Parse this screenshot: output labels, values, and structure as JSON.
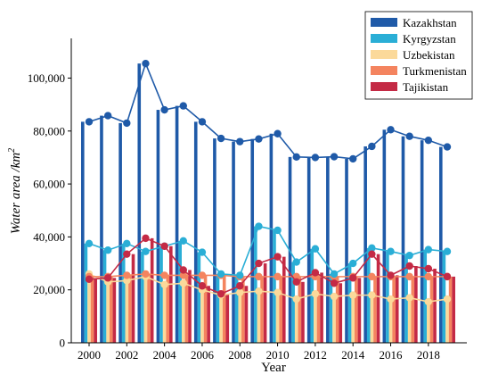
{
  "chart_data": {
    "type": "bar",
    "xlabel": "Year",
    "ylabel": "Water area /km",
    "ylabel_sup": "2",
    "ylim": [
      0,
      115000
    ],
    "yticks": [
      0,
      20000,
      40000,
      60000,
      80000,
      100000
    ],
    "ytick_labels": [
      "0",
      "20,000",
      "40,000",
      "60,000",
      "80,000",
      "100,000"
    ],
    "xticks": [
      2000,
      2002,
      2004,
      2006,
      2008,
      2010,
      2012,
      2014,
      2016,
      2018
    ],
    "xtick_labels": [
      "2000",
      "2002",
      "2004",
      "2006",
      "2008",
      "2010",
      "2012",
      "2014",
      "2016",
      "2018"
    ],
    "x": [
      2000,
      2001,
      2002,
      2003,
      2004,
      2005,
      2006,
      2007,
      2008,
      2009,
      2010,
      2011,
      2012,
      2013,
      2014,
      2015,
      2016,
      2017,
      2018,
      2019
    ],
    "legend_position": "top-right",
    "grid": false,
    "series": [
      {
        "name": "Kazakhstan",
        "color": "#1f5aa8",
        "values": [
          83500,
          85800,
          83000,
          105500,
          88000,
          89500,
          83500,
          77200,
          76000,
          77000,
          79000,
          70200,
          70000,
          70300,
          69500,
          74200,
          80500,
          78000,
          76500,
          74000
        ]
      },
      {
        "name": "Kyrgyzstan",
        "color": "#2aaed6",
        "values": [
          37500,
          35000,
          37500,
          34500,
          36500,
          38500,
          34200,
          26000,
          25500,
          44000,
          42500,
          30500,
          35500,
          26000,
          30000,
          35800,
          34500,
          33000,
          35200,
          34500
        ]
      },
      {
        "name": "Uzbekistan",
        "color": "#fbd99a",
        "values": [
          26000,
          23000,
          23500,
          25000,
          22000,
          22500,
          20000,
          18000,
          19000,
          19500,
          19000,
          16500,
          18500,
          17500,
          18000,
          18000,
          16500,
          17000,
          15500,
          16500
        ]
      },
      {
        "name": "Turkmenistan",
        "color": "#f4845f",
        "values": [
          25000,
          25000,
          25500,
          26000,
          25500,
          25500,
          25500,
          25500,
          25000,
          25000,
          25000,
          25000,
          25000,
          25000,
          25000,
          25000,
          25000,
          25000,
          25000,
          25000
        ]
      },
      {
        "name": "Tajikistan",
        "color": "#c42a45",
        "values": [
          24000,
          24500,
          33500,
          39500,
          36500,
          27500,
          21500,
          18500,
          21500,
          30000,
          32500,
          23000,
          26500,
          22500,
          24500,
          33500,
          25500,
          29000,
          28000,
          25000
        ]
      }
    ]
  }
}
